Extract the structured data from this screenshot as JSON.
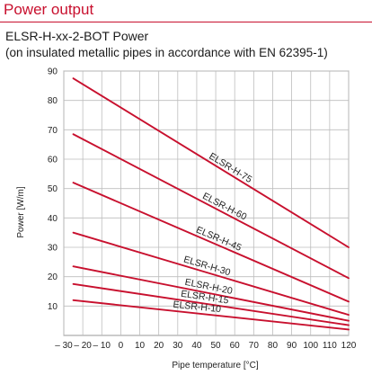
{
  "header": {
    "title": "Power output"
  },
  "chart_data": {
    "type": "line",
    "title": "ELSR-H-xx-2-BOT Power",
    "subtitle": "(on insulated metallic pipes in accordance with EN 62395-1)",
    "xlabel": "Pipe temperature [°C]",
    "ylabel": "Power [W/m]",
    "xlim": [
      -30,
      120
    ],
    "ylim": [
      0,
      90
    ],
    "xticks": [
      -30,
      -20,
      -10,
      0,
      10,
      20,
      30,
      40,
      50,
      60,
      70,
      80,
      90,
      100,
      110,
      120
    ],
    "xtick_labels": [
      "– 30",
      "– 20",
      "– 10",
      "0",
      "10",
      "20",
      "30",
      "40",
      "50",
      "60",
      "70",
      "80",
      "90",
      "100",
      "110",
      "120"
    ],
    "yticks": [
      10,
      20,
      30,
      40,
      50,
      60,
      70,
      80,
      90
    ],
    "grid": true,
    "line_color": "#c8102e",
    "series": [
      {
        "name": "ELSR-H-75",
        "x": [
          -25,
          120
        ],
        "y": [
          87.5,
          30
        ]
      },
      {
        "name": "ELSR-H-60",
        "x": [
          -25,
          120
        ],
        "y": [
          68.5,
          19.5
        ]
      },
      {
        "name": "ELSR-H-45",
        "x": [
          -25,
          120
        ],
        "y": [
          52,
          11.5
        ]
      },
      {
        "name": "ELSR-H-30",
        "x": [
          -25,
          120
        ],
        "y": [
          35,
          7
        ]
      },
      {
        "name": "ELSR-H-20",
        "x": [
          -25,
          120
        ],
        "y": [
          23.5,
          5
        ]
      },
      {
        "name": "ELSR-H-15",
        "x": [
          -25,
          120
        ],
        "y": [
          17.5,
          3.5
        ]
      },
      {
        "name": "ELSR-H-10",
        "x": [
          -25,
          120
        ],
        "y": [
          12,
          2
        ]
      }
    ]
  }
}
